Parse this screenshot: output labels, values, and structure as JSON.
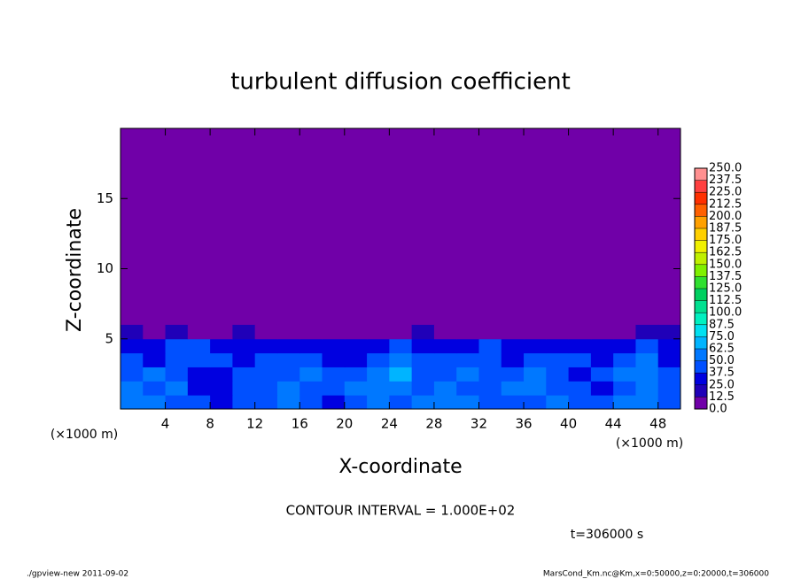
{
  "chart_data": {
    "type": "heatmap",
    "title": "turbulent diffusion coefficient",
    "x_label": "X-coordinate",
    "y_label": "Z-coordinate",
    "x_unit_label": "(×1000 m)",
    "y_unit_label": "(×1000 m)",
    "contour_label": "CONTOUR INTERVAL = 1.000E+02",
    "time_label": "t=306000 s",
    "footer_left": "./gpview-new  2011-09-02",
    "footer_right": "MarsCond_Km.nc@Km,x=0:50000,z=0:20000,t=306000",
    "xlim": [
      0,
      50
    ],
    "ylim": [
      0,
      20
    ],
    "xticks": [
      4,
      8,
      12,
      16,
      20,
      24,
      28,
      32,
      36,
      40,
      44,
      48
    ],
    "yticks": [
      5,
      10,
      15
    ],
    "x": [
      1,
      3,
      5,
      7,
      9,
      11,
      13,
      15,
      17,
      19,
      21,
      23,
      25,
      27,
      29,
      31,
      33,
      35,
      37,
      39,
      41,
      43,
      45,
      47,
      49
    ],
    "z": [
      0.5,
      1.5,
      2.5,
      3.5,
      4.5,
      5.5
    ],
    "values": [
      [
        55,
        60,
        45,
        40,
        35,
        40,
        45,
        50,
        40,
        35,
        45,
        50,
        45,
        55,
        60,
        50,
        45,
        40,
        45,
        50,
        40,
        45,
        50,
        55,
        45
      ],
      [
        60,
        45,
        50,
        35,
        30,
        45,
        40,
        55,
        45,
        40,
        50,
        60,
        55,
        45,
        50,
        45,
        40,
        50,
        55,
        45,
        40,
        35,
        45,
        50,
        40
      ],
      [
        45,
        55,
        40,
        30,
        35,
        40,
        45,
        40,
        50,
        45,
        40,
        55,
        70,
        45,
        40,
        50,
        45,
        40,
        50,
        45,
        35,
        40,
        55,
        60,
        40
      ],
      [
        40,
        35,
        45,
        40,
        45,
        35,
        40,
        45,
        40,
        35,
        30,
        40,
        50,
        45,
        40,
        45,
        40,
        35,
        40,
        45,
        40,
        35,
        40,
        55,
        35
      ],
      [
        35,
        30,
        40,
        45,
        35,
        30,
        35,
        30,
        35,
        30,
        25,
        30,
        40,
        35,
        30,
        35,
        40,
        30,
        30,
        35,
        30,
        30,
        35,
        40,
        30
      ],
      [
        20,
        10,
        15,
        5,
        10,
        15,
        10,
        5,
        10,
        5,
        0,
        5,
        10,
        15,
        5,
        5,
        10,
        5,
        5,
        10,
        5,
        5,
        10,
        15,
        20
      ]
    ],
    "levels": [
      {
        "value": 0,
        "label": "0.0"
      },
      {
        "value": 12.5,
        "label": "12.5"
      },
      {
        "value": 25,
        "label": "25.0"
      },
      {
        "value": 37.5,
        "label": "37.5"
      },
      {
        "value": 50,
        "label": "50.0"
      },
      {
        "value": 62.5,
        "label": "62.5"
      },
      {
        "value": 75,
        "label": "75.0"
      },
      {
        "value": 87.5,
        "label": "87.5"
      },
      {
        "value": 100,
        "label": "100.0"
      },
      {
        "value": 112.5,
        "label": "112.5"
      },
      {
        "value": 125,
        "label": "125.0"
      },
      {
        "value": 137.5,
        "label": "137.5"
      },
      {
        "value": 150,
        "label": "150.0"
      },
      {
        "value": 162.5,
        "label": "162.5"
      },
      {
        "value": 175,
        "label": "175.0"
      },
      {
        "value": 187.5,
        "label": "187.5"
      },
      {
        "value": 200,
        "label": "200.0"
      },
      {
        "value": 212.5,
        "label": "212.5"
      },
      {
        "value": 225,
        "label": "225.0"
      },
      {
        "value": 237.5,
        "label": "237.5"
      },
      {
        "value": 250,
        "label": "250.0"
      }
    ],
    "colors": [
      "#7000a8",
      "#2000b8",
      "#0000e0",
      "#0050ff",
      "#0078ff",
      "#00b4ff",
      "#00e0f0",
      "#00f0c0",
      "#00e090",
      "#00d060",
      "#30e030",
      "#80f000",
      "#c0f000",
      "#f0f000",
      "#ffd000",
      "#ffa000",
      "#ff6000",
      "#ff3000",
      "#ff4040",
      "#ff9090"
    ]
  }
}
